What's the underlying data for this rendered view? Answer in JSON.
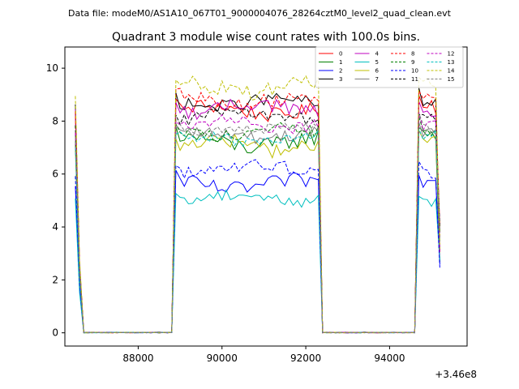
{
  "suptitle": "Data file: modeM0/AS1A10_067T01_9000004076_28264cztM0_level2_quad_clean.evt",
  "chart_data": {
    "type": "line",
    "title": "Quadrant 3 module wise count rates with 100.0s bins.",
    "xlabel": "",
    "ylabel": "",
    "x_offset_label": "+3.46e8",
    "xlim": [
      86250,
      95850
    ],
    "ylim": [
      -0.5,
      10.8
    ],
    "xticks": [
      88000,
      90000,
      92000,
      94000
    ],
    "yticks": [
      0,
      2,
      4,
      6,
      8,
      10
    ],
    "legend_position": "upper right",
    "legend_columns": 4,
    "gti_segments": [
      {
        "start": 88900,
        "end": 92300
      },
      {
        "start": 94700,
        "end": 95250
      }
    ],
    "series": [
      {
        "name": "0",
        "color": "#ff0000",
        "style": "solid",
        "level": 8.4,
        "amp": 0.35
      },
      {
        "name": "1",
        "color": "#008000",
        "style": "solid",
        "level": 7.2,
        "amp": 0.4
      },
      {
        "name": "2",
        "color": "#0000ff",
        "style": "solid",
        "level": 5.6,
        "amp": 0.35
      },
      {
        "name": "3",
        "color": "#000000",
        "style": "solid",
        "level": 8.7,
        "amp": 0.3
      },
      {
        "name": "4",
        "color": "#bf00bf",
        "style": "solid",
        "level": 8.5,
        "amp": 0.35
      },
      {
        "name": "5",
        "color": "#00bfbf",
        "style": "solid",
        "level": 5.1,
        "amp": 0.3
      },
      {
        "name": "6",
        "color": "#bfbf00",
        "style": "solid",
        "level": 7.1,
        "amp": 0.4
      },
      {
        "name": "7",
        "color": "#808080",
        "style": "solid",
        "level": 7.5,
        "amp": 0.3
      },
      {
        "name": "8",
        "color": "#ff0000",
        "style": "dashed",
        "level": 8.8,
        "amp": 0.35
      },
      {
        "name": "9",
        "color": "#008000",
        "style": "dashed",
        "level": 7.6,
        "amp": 0.3
      },
      {
        "name": "10",
        "color": "#0000ff",
        "style": "dashed",
        "level": 6.2,
        "amp": 0.3
      },
      {
        "name": "11",
        "color": "#000000",
        "style": "dashed",
        "level": 8.2,
        "amp": 0.3
      },
      {
        "name": "12",
        "color": "#bf00bf",
        "style": "dashed",
        "level": 7.9,
        "amp": 0.3
      },
      {
        "name": "13",
        "color": "#00bfbf",
        "style": "dashed",
        "level": 7.3,
        "amp": 0.3
      },
      {
        "name": "14",
        "color": "#bfbf00",
        "style": "dashed",
        "level": 9.3,
        "amp": 0.4
      },
      {
        "name": "15",
        "color": "#808080",
        "style": "dashed",
        "level": 7.7,
        "amp": 0.3
      }
    ],
    "x_start": 86500,
    "x_end": 95250,
    "bin": 100
  }
}
